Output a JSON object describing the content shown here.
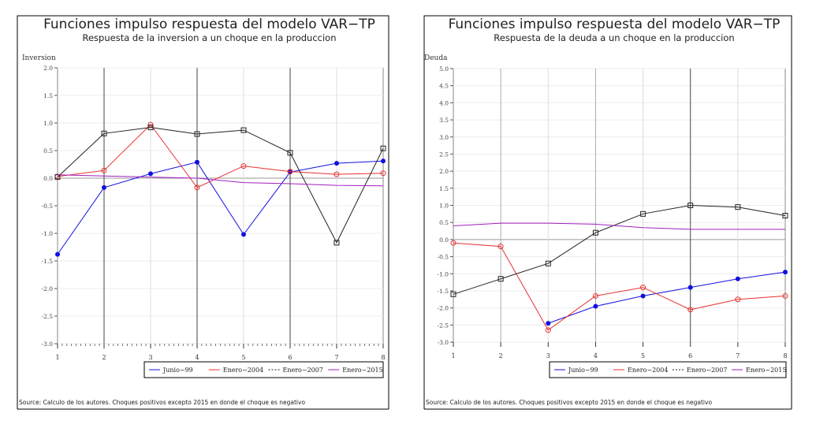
{
  "chart_data": [
    {
      "type": "line",
      "title": "Funciones impulso respuesta del modelo VAR−TP",
      "subtitle": "Respuesta de la inversion a un choque en la produccion",
      "ylabel": "Inversion",
      "xlabel": "",
      "x": [
        1,
        2,
        3,
        4,
        5,
        6,
        7,
        8
      ],
      "x_ticks": [
        "1",
        "2",
        "3",
        "4",
        "5",
        "6",
        "7",
        "8"
      ],
      "ylim": [
        -3.0,
        2.0
      ],
      "y_ticks": [
        -3.0,
        -2.5,
        -2.0,
        -1.5,
        -1.0,
        -0.5,
        0.0,
        0.5,
        1.0,
        1.5,
        2.0
      ],
      "y_tick_labels": [
        "-3.0",
        "-2.5",
        "-2.0",
        "-1.5",
        "-1.0",
        "-0.5",
        "0.0",
        "0.5",
        "1.0",
        "1.5",
        "2.0"
      ],
      "grid": true,
      "legend_position": "bottom-right",
      "series": [
        {
          "name": "Junio−99",
          "color": "#1010e0",
          "marker": "dot",
          "values": [
            -1.38,
            -0.17,
            0.08,
            0.29,
            -1.02,
            0.11,
            0.27,
            0.31
          ]
        },
        {
          "name": "Enero−2004",
          "color": "#e83030",
          "marker": "circle",
          "values": [
            0.03,
            0.14,
            0.97,
            -0.17,
            0.22,
            0.12,
            0.07,
            0.09
          ]
        },
        {
          "name": "Enero−2007",
          "color": "#222222",
          "marker": "square",
          "values": [
            0.02,
            0.81,
            0.92,
            0.8,
            0.87,
            0.46,
            -1.17,
            0.54
          ]
        },
        {
          "name": "Enero−2015",
          "color": "#a020c0",
          "marker": "none",
          "values": [
            0.06,
            0.04,
            0.02,
            0.0,
            -0.08,
            -0.1,
            -0.13,
            -0.14
          ]
        }
      ],
      "source": "Source: Calculo de los autores. Choques positivos excepto 2015 en donde el choque es negativo"
    },
    {
      "type": "line",
      "title": "Funciones impulso respuesta del modelo VAR−TP",
      "subtitle": "Respuesta de la deuda a un choque en la produccion",
      "ylabel": "Deuda",
      "xlabel": "",
      "x": [
        1,
        2,
        3,
        4,
        5,
        6,
        7,
        8
      ],
      "x_ticks": [
        "1",
        "2",
        "3",
        "4",
        "5",
        "6",
        "7",
        "8"
      ],
      "ylim": [
        -3.0,
        5.0
      ],
      "y_ticks": [
        -3.0,
        -2.5,
        -2.0,
        -1.5,
        -1.0,
        -0.5,
        0.0,
        0.5,
        1.0,
        1.5,
        2.0,
        2.5,
        3.0,
        3.5,
        4.0,
        4.5,
        5.0
      ],
      "y_tick_labels": [
        "-3.0",
        "-2.5",
        "-2.0",
        "-1.5",
        "-1.0",
        "-0.5",
        "0.0",
        "0.5",
        "1.0",
        "1.5",
        "2.0",
        "2.5",
        "3.0",
        "3.5",
        "4.0",
        "4.5",
        "5.0"
      ],
      "grid": true,
      "legend_position": "bottom-right",
      "series": [
        {
          "name": "Junio−99",
          "color": "#1010e0",
          "marker": "dot",
          "values": [
            null,
            null,
            -2.45,
            -1.95,
            -1.65,
            -1.4,
            -1.15,
            -0.95
          ]
        },
        {
          "name": "Enero−2004",
          "color": "#e83030",
          "marker": "circle",
          "values": [
            -0.1,
            -0.2,
            -2.65,
            -1.65,
            -1.4,
            -2.05,
            -1.75,
            -1.65
          ]
        },
        {
          "name": "Enero−2007",
          "color": "#222222",
          "marker": "square",
          "values": [
            -1.6,
            -1.15,
            -0.7,
            0.2,
            0.75,
            1.0,
            0.95,
            0.7
          ]
        },
        {
          "name": "Enero−2015",
          "color": "#a020c0",
          "marker": "none",
          "values": [
            0.4,
            0.48,
            0.48,
            0.45,
            0.35,
            0.3,
            0.3,
            0.3
          ]
        }
      ],
      "source": "Source: Calculo de los autores. Choques positivos excepto 2015 en donde el choque es negativo"
    }
  ]
}
